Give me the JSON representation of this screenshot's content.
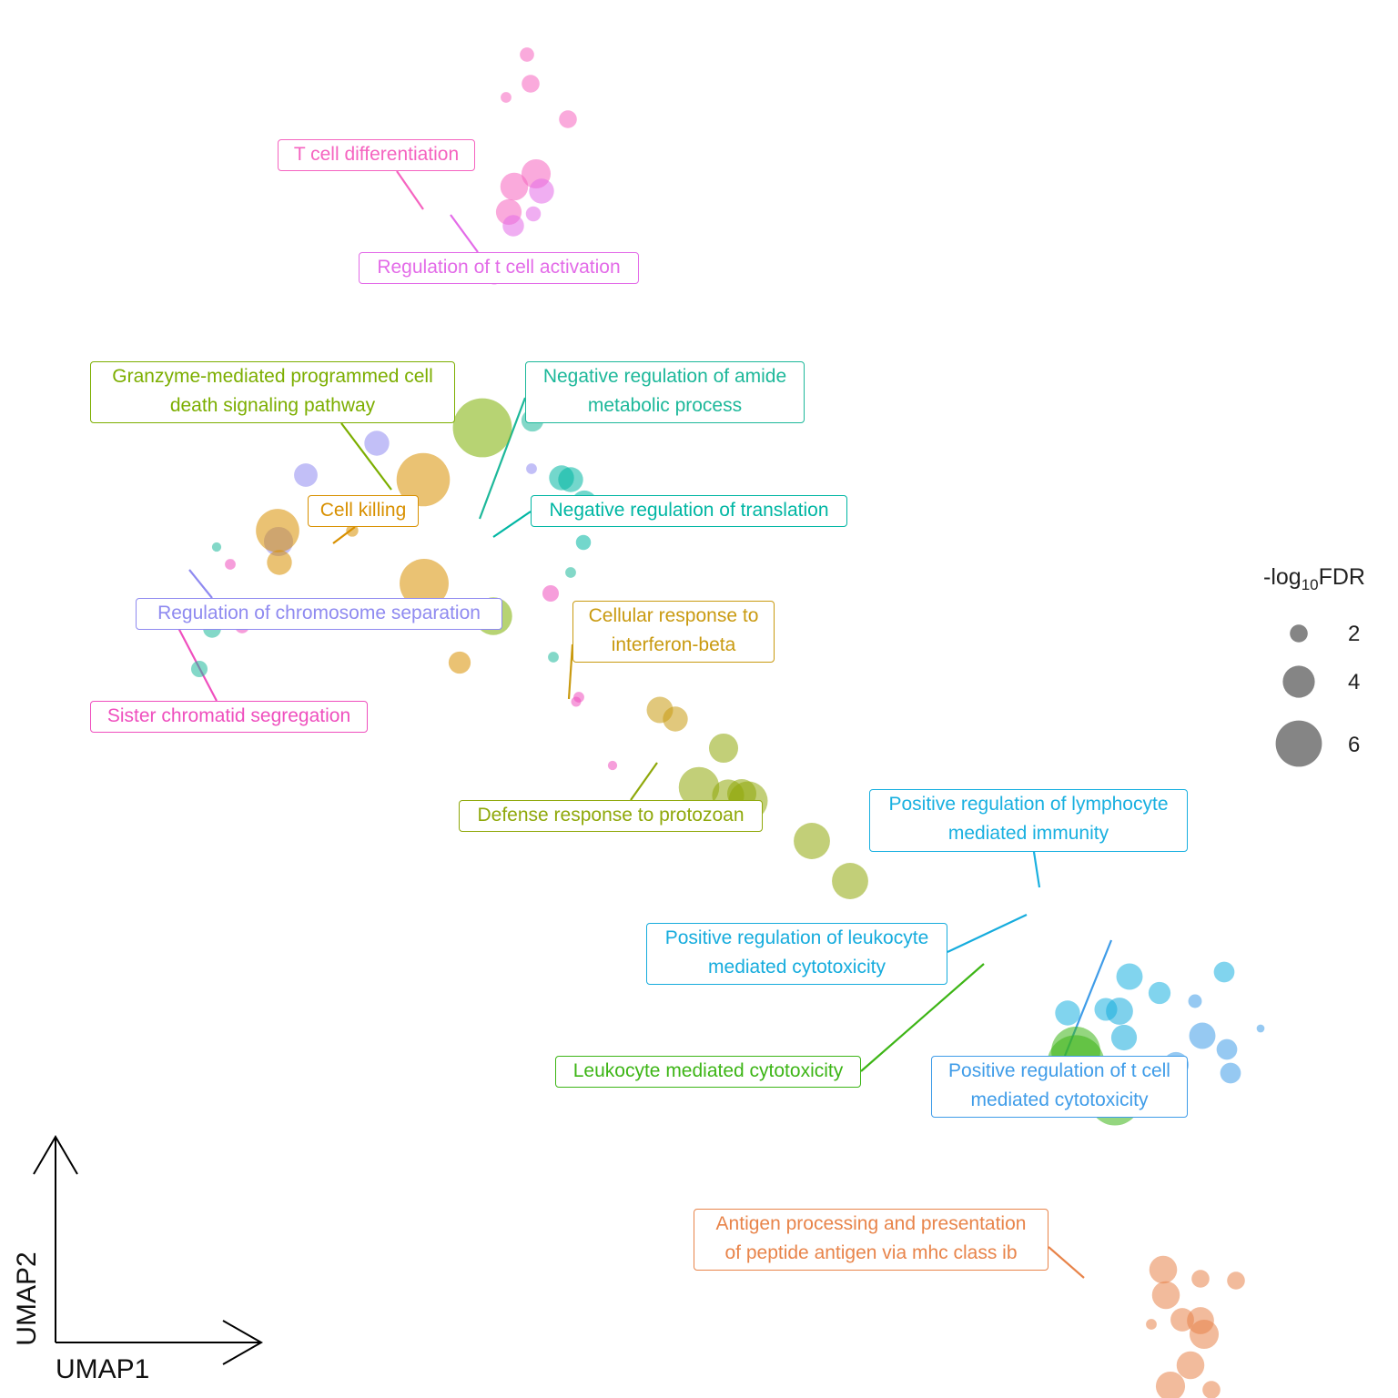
{
  "chart_data": {
    "type": "scatter",
    "title": "",
    "xlabel": "UMAP1",
    "ylabel": "UMAP2",
    "size_legend": {
      "title_prefix": "-log",
      "title_sub": "10",
      "title_suffix": "FDR",
      "values": [
        "2",
        "4",
        "6"
      ]
    },
    "clusters": [
      {
        "name": "T cell differentiation",
        "lines": [
          "T cell differentiation"
        ],
        "color": "#F564C0"
      },
      {
        "name": "Regulation of t cell activation",
        "lines": [
          "Regulation of t cell activation"
        ],
        "color": "#E36BE8"
      },
      {
        "name": "Granzyme-mediated programmed cell death signaling pathway",
        "lines": [
          "Granzyme-mediated programmed cell",
          "death signaling pathway"
        ],
        "color": "#7CAE00"
      },
      {
        "name": "Negative regulation of amide metabolic process",
        "lines": [
          "Negative regulation of amide",
          "metabolic process"
        ],
        "color": "#1DB89A"
      },
      {
        "name": "Cell killing",
        "lines": [
          "Cell killing"
        ],
        "color": "#D89000"
      },
      {
        "name": "Negative regulation of translation",
        "lines": [
          "Negative regulation of translation"
        ],
        "color": "#00B6A3"
      },
      {
        "name": "Regulation of chromosome separation",
        "lines": [
          "Regulation of chromosome separation"
        ],
        "color": "#8F8AF0"
      },
      {
        "name": "Sister chromatid segregation",
        "lines": [
          "Sister chromatid segregation"
        ],
        "color": "#EF4FBE"
      },
      {
        "name": "Cellular response to interferon-beta",
        "lines": [
          "Cellular response to",
          "interferon-beta"
        ],
        "color": "#C99A10"
      },
      {
        "name": "Defense response to protozoan",
        "lines": [
          "Defense response to protozoan"
        ],
        "color": "#8FA80A"
      },
      {
        "name": "Positive regulation of lymphocyte mediated immunity",
        "lines": [
          "Positive regulation of lymphocyte",
          "mediated immunity"
        ],
        "color": "#19B0E0"
      },
      {
        "name": "Positive regulation of leukocyte mediated cytotoxicity",
        "lines": [
          "Positive regulation of leukocyte",
          "mediated cytotoxicity"
        ],
        "color": "#16ACDD"
      },
      {
        "name": "Leukocyte mediated cytotoxicity",
        "lines": [
          "Leukocyte mediated cytotoxicity"
        ],
        "color": "#3DB516"
      },
      {
        "name": "Positive regulation of t cell mediated cytotoxicity",
        "lines": [
          "Positive regulation of t cell",
          "mediated cytotoxicity"
        ],
        "color": "#3F9CE8"
      },
      {
        "name": "Antigen processing and presentation of peptide antigen via mhc class ib",
        "lines": [
          "Antigen processing and presentation",
          "of peptide antigen via mhc class ib"
        ],
        "color": "#E8844A"
      }
    ],
    "points": [
      {
        "x": 4.79,
        "y": 9.45,
        "size": 1.5,
        "cluster": 0
      },
      {
        "x": 4.83,
        "y": 9.13,
        "size": 2.0,
        "cluster": 0
      },
      {
        "x": 4.56,
        "y": 8.98,
        "size": 1.0,
        "cluster": 0
      },
      {
        "x": 5.24,
        "y": 8.74,
        "size": 2.0,
        "cluster": 0
      },
      {
        "x": 4.89,
        "y": 8.14,
        "size": 3.6,
        "cluster": 0
      },
      {
        "x": 4.65,
        "y": 8.0,
        "size": 3.4,
        "cluster": 0
      },
      {
        "x": 4.59,
        "y": 7.72,
        "size": 3.1,
        "cluster": 0
      },
      {
        "x": 4.86,
        "y": 7.7,
        "size": 1.6,
        "cluster": 1
      },
      {
        "x": 4.95,
        "y": 7.95,
        "size": 3.0,
        "cluster": 1
      },
      {
        "x": 4.64,
        "y": 7.57,
        "size": 2.5,
        "cluster": 1
      },
      {
        "x": 4.43,
        "y": 6.99,
        "size": 1.2,
        "cluster": 1
      },
      {
        "x": 3.14,
        "y": 5.18,
        "size": 3.0,
        "cluster": 6
      },
      {
        "x": 2.36,
        "y": 4.83,
        "size": 2.8,
        "cluster": 6
      },
      {
        "x": 2.06,
        "y": 4.1,
        "size": 3.6,
        "cluster": 6
      },
      {
        "x": 1.53,
        "y": 3.85,
        "size": 1.0,
        "cluster": 7
      },
      {
        "x": 1.66,
        "y": 3.35,
        "size": 2.0,
        "cluster": 7
      },
      {
        "x": 1.79,
        "y": 3.31,
        "size": 2.6,
        "cluster": 7
      },
      {
        "x": 1.66,
        "y": 3.17,
        "size": 1.5,
        "cluster": 7
      },
      {
        "x": 1.38,
        "y": 4.04,
        "size": 0.8,
        "cluster": 3
      },
      {
        "x": 1.33,
        "y": 3.14,
        "size": 2.0,
        "cluster": 3
      },
      {
        "x": 1.19,
        "y": 2.7,
        "size": 1.8,
        "cluster": 3
      },
      {
        "x": 2.05,
        "y": 4.22,
        "size": 5.6,
        "cluster": 4
      },
      {
        "x": 2.07,
        "y": 3.87,
        "size": 3.0,
        "cluster": 4
      },
      {
        "x": 2.87,
        "y": 4.22,
        "size": 1.2,
        "cluster": 4
      },
      {
        "x": 3.65,
        "y": 4.78,
        "size": 7.0,
        "cluster": 4
      },
      {
        "x": 3.66,
        "y": 3.64,
        "size": 6.4,
        "cluster": 4
      },
      {
        "x": 4.05,
        "y": 2.77,
        "size": 2.6,
        "cluster": 4
      },
      {
        "x": 3.69,
        "y": 5.92,
        "size": 3.0,
        "cluster": 2
      },
      {
        "x": 4.3,
        "y": 5.35,
        "size": 7.8,
        "cluster": 2
      },
      {
        "x": 4.42,
        "y": 3.28,
        "size": 4.8,
        "cluster": 2
      },
      {
        "x": 4.85,
        "y": 5.43,
        "size": 2.6,
        "cluster": 3
      },
      {
        "x": 4.84,
        "y": 4.9,
        "size": 1.0,
        "cluster": 6
      },
      {
        "x": 5.17,
        "y": 4.8,
        "size": 3.0,
        "cluster": 5
      },
      {
        "x": 5.27,
        "y": 4.78,
        "size": 3.0,
        "cluster": 5
      },
      {
        "x": 5.42,
        "y": 4.52,
        "size": 3.1,
        "cluster": 5
      },
      {
        "x": 5.41,
        "y": 4.09,
        "size": 1.6,
        "cluster": 5
      },
      {
        "x": 5.27,
        "y": 3.76,
        "size": 1.0,
        "cluster": 3
      },
      {
        "x": 5.05,
        "y": 3.53,
        "size": 1.8,
        "cluster": 7
      },
      {
        "x": 5.42,
        "y": 3.34,
        "size": 1.8,
        "cluster": 7
      },
      {
        "x": 5.08,
        "y": 2.83,
        "size": 1.0,
        "cluster": 3
      },
      {
        "x": 5.36,
        "y": 2.39,
        "size": 1.0,
        "cluster": 7
      },
      {
        "x": 5.33,
        "y": 2.34,
        "size": 0.9,
        "cluster": 7
      },
      {
        "x": 5.73,
        "y": 1.64,
        "size": 0.8,
        "cluster": 7
      },
      {
        "x": 6.25,
        "y": 2.25,
        "size": 3.2,
        "cluster": 8
      },
      {
        "x": 6.42,
        "y": 2.15,
        "size": 3.0,
        "cluster": 8
      },
      {
        "x": 6.95,
        "y": 1.83,
        "size": 3.6,
        "cluster": 9
      },
      {
        "x": 6.68,
        "y": 1.4,
        "size": 5.2,
        "cluster": 9
      },
      {
        "x": 7.0,
        "y": 1.31,
        "size": 4.0,
        "cluster": 9
      },
      {
        "x": 7.15,
        "y": 1.33,
        "size": 3.6,
        "cluster": 9
      },
      {
        "x": 7.22,
        "y": 1.25,
        "size": 5.0,
        "cluster": 9
      },
      {
        "x": 7.92,
        "y": 0.81,
        "size": 4.6,
        "cluster": 9
      },
      {
        "x": 8.34,
        "y": 0.37,
        "size": 4.6,
        "cluster": 9
      },
      {
        "x": 11.41,
        "y": -0.68,
        "size": 3.2,
        "cluster": 10
      },
      {
        "x": 11.74,
        "y": -0.86,
        "size": 2.6,
        "cluster": 10
      },
      {
        "x": 12.45,
        "y": -0.63,
        "size": 2.4,
        "cluster": 10
      },
      {
        "x": 10.73,
        "y": -1.08,
        "size": 3.0,
        "cluster": 10
      },
      {
        "x": 11.15,
        "y": -1.04,
        "size": 2.7,
        "cluster": 10
      },
      {
        "x": 11.3,
        "y": -1.06,
        "size": 3.3,
        "cluster": 11
      },
      {
        "x": 11.35,
        "y": -1.35,
        "size": 3.1,
        "cluster": 11
      },
      {
        "x": 12.13,
        "y": -0.95,
        "size": 1.4,
        "cluster": 13
      },
      {
        "x": 12.21,
        "y": -1.33,
        "size": 3.2,
        "cluster": 13
      },
      {
        "x": 12.48,
        "y": -1.48,
        "size": 2.4,
        "cluster": 13
      },
      {
        "x": 11.92,
        "y": -1.65,
        "size": 3.1,
        "cluster": 13
      },
      {
        "x": 12.52,
        "y": -1.74,
        "size": 2.4,
        "cluster": 13
      },
      {
        "x": 11.22,
        "y": -1.96,
        "size": 1.3,
        "cluster": 13
      },
      {
        "x": 12.85,
        "y": -1.25,
        "size": 0.6,
        "cluster": 13
      },
      {
        "x": 10.82,
        "y": -1.5,
        "size": 6.4,
        "cluster": 12
      },
      {
        "x": 10.82,
        "y": -1.64,
        "size": 7.6,
        "cluster": 12
      },
      {
        "x": 11.25,
        "y": -2.03,
        "size": 6.8,
        "cluster": 12
      },
      {
        "x": 11.4,
        "y": -1.92,
        "size": 2.8,
        "cluster": 12
      },
      {
        "x": 11.78,
        "y": -3.9,
        "size": 3.4,
        "cluster": 14
      },
      {
        "x": 12.19,
        "y": -4.0,
        "size": 2.0,
        "cluster": 14
      },
      {
        "x": 12.58,
        "y": -4.02,
        "size": 2.0,
        "cluster": 14
      },
      {
        "x": 11.81,
        "y": -4.18,
        "size": 3.4,
        "cluster": 14
      },
      {
        "x": 11.99,
        "y": -4.45,
        "size": 2.8,
        "cluster": 14
      },
      {
        "x": 12.19,
        "y": -4.46,
        "size": 3.3,
        "cluster": 14
      },
      {
        "x": 12.23,
        "y": -4.61,
        "size": 3.6,
        "cluster": 14
      },
      {
        "x": 11.65,
        "y": -4.5,
        "size": 1.0,
        "cluster": 14
      },
      {
        "x": 12.08,
        "y": -4.95,
        "size": 3.4,
        "cluster": 14
      },
      {
        "x": 11.86,
        "y": -5.18,
        "size": 3.6,
        "cluster": 14
      },
      {
        "x": 12.31,
        "y": -5.22,
        "size": 2.0,
        "cluster": 14
      }
    ]
  }
}
